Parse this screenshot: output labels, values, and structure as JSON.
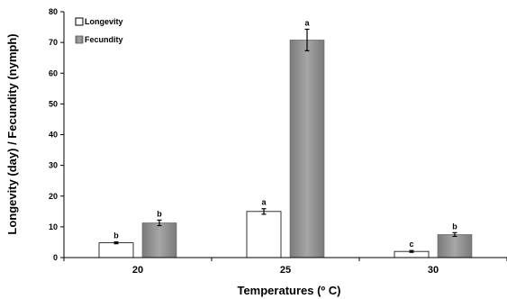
{
  "chart_data": {
    "type": "bar",
    "categories": [
      "20",
      "25",
      "30"
    ],
    "series": [
      {
        "name": "Longevity",
        "values": [
          4.8,
          15.0,
          2.0
        ],
        "errors": [
          0.3,
          0.9,
          0.3
        ],
        "letters": [
          "b",
          "a",
          "c"
        ],
        "color": "#ffffff"
      },
      {
        "name": "Fecundity",
        "values": [
          11.3,
          70.8,
          7.5
        ],
        "errors": [
          0.9,
          3.5,
          0.6
        ],
        "letters": [
          "b",
          "a",
          "b"
        ],
        "color": "#8c8c8c"
      }
    ],
    "xlabel": "Temperatures (º C)",
    "ylabel": "Longevity (day) / Fecundity (nymph)",
    "ylim": [
      0,
      80
    ],
    "yticks": [
      "0",
      "10",
      "20",
      "30",
      "40",
      "50",
      "60",
      "70",
      "80"
    ],
    "legend_position": "top-left",
    "grid": false
  }
}
